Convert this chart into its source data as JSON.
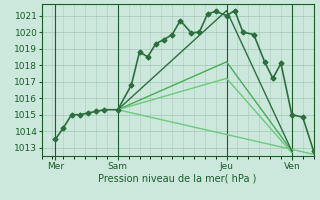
{
  "bg_color": "#cce8dc",
  "grid_color": "#aaccbb",
  "line_color_dark": "#1a5c2a",
  "xlabel": "Pression niveau de la mer( hPa )",
  "xlim": [
    0,
    100
  ],
  "ylim": [
    1012.5,
    1021.7
  ],
  "yticks": [
    1013,
    1014,
    1015,
    1016,
    1017,
    1018,
    1019,
    1020,
    1021
  ],
  "xtick_labels": [
    "Mer",
    "Sam",
    "Jeu",
    "Ven"
  ],
  "xtick_positions": [
    5,
    28,
    68,
    92
  ],
  "vline_positions": [
    5,
    28,
    68,
    92
  ],
  "series": [
    {
      "x": [
        5,
        8,
        11,
        14,
        17,
        20,
        23,
        28,
        33,
        36,
        39,
        42,
        45,
        48,
        51,
        55,
        58,
        61,
        64,
        68,
        71,
        74,
        78,
        82,
        85,
        88,
        92,
        96,
        100
      ],
      "y": [
        1013.5,
        1014.2,
        1015.0,
        1015.0,
        1015.1,
        1015.2,
        1015.3,
        1015.3,
        1016.8,
        1018.8,
        1018.5,
        1019.3,
        1019.55,
        1019.85,
        1020.7,
        1019.95,
        1020.0,
        1021.1,
        1021.25,
        1021.0,
        1021.3,
        1020.0,
        1019.85,
        1018.2,
        1017.2,
        1018.1,
        1015.0,
        1014.85,
        1012.8
      ],
      "color": "#2d6e3e",
      "marker": "D",
      "markersize": 2.5,
      "linewidth": 1.2,
      "zorder": 5
    },
    {
      "x": [
        28,
        68,
        92
      ],
      "y": [
        1015.3,
        1021.3,
        1012.8
      ],
      "color": "#2d6e3e",
      "marker": null,
      "linewidth": 1.0,
      "zorder": 4
    },
    {
      "x": [
        28,
        68,
        92
      ],
      "y": [
        1015.3,
        1018.2,
        1012.8
      ],
      "color": "#4aaa5a",
      "marker": null,
      "linewidth": 1.0,
      "zorder": 3
    },
    {
      "x": [
        28,
        68,
        92
      ],
      "y": [
        1015.3,
        1017.2,
        1012.7
      ],
      "color": "#6ec87e",
      "marker": null,
      "linewidth": 1.0,
      "zorder": 3
    },
    {
      "x": [
        28,
        100
      ],
      "y": [
        1015.3,
        1012.6
      ],
      "color": "#6ec87e",
      "marker": null,
      "linewidth": 1.0,
      "zorder": 3
    }
  ]
}
